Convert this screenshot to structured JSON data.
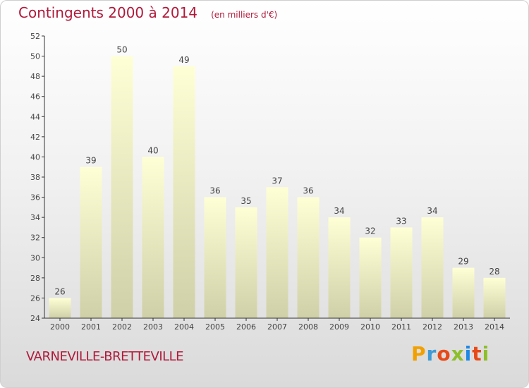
{
  "chart_data": {
    "type": "bar",
    "title": "Contingents 2000 à 2014",
    "subtitle": "(en milliers d'€)",
    "categories": [
      "2000",
      "2001",
      "2002",
      "2003",
      "2004",
      "2005",
      "2006",
      "2007",
      "2008",
      "2009",
      "2010",
      "2011",
      "2012",
      "2013",
      "2014"
    ],
    "values": [
      26,
      39,
      50,
      40,
      49,
      36,
      35,
      37,
      36,
      34,
      32,
      33,
      34,
      29,
      28
    ],
    "ylim": [
      24,
      52
    ],
    "yticks": [
      24,
      26,
      28,
      30,
      32,
      34,
      36,
      38,
      40,
      42,
      44,
      46,
      48,
      50,
      52
    ],
    "xlabel": "",
    "ylabel": "",
    "grid": false,
    "legend": "none"
  },
  "place_name": "VARNEVILLE-BRETTEVILLE",
  "logo": {
    "text": "Proxiti",
    "letters": [
      "P",
      "r",
      "o",
      "x",
      "i",
      "t",
      "i"
    ],
    "letter_colors": [
      "#f2a000",
      "#3f9bd6",
      "#e64a19",
      "#8dbf2a",
      "#1e88e5",
      "#e64a19",
      "#8dbf2a"
    ]
  },
  "colors": {
    "title": "#b0193a",
    "bar_top": "#ffffd6",
    "bar_bottom": "#d0d0a8",
    "axis": "#333333",
    "label": "#444444"
  }
}
